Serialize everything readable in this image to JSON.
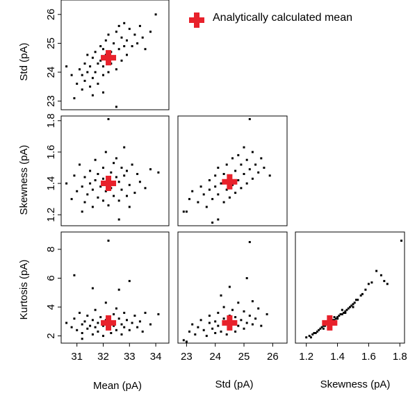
{
  "legend": {
    "label": "Analytically calculated mean",
    "marker_color": "#e8212b"
  },
  "colors": {
    "points": "#000000",
    "mean_marker": "#e8212b"
  },
  "chart_data": [
    {
      "type": "scatter",
      "panel": "std-vs-mean",
      "xlabel": "",
      "ylabel": "Std (pA)",
      "xlim": [
        30.4,
        34.5
      ],
      "ylim": [
        22.7,
        26.5
      ],
      "yticks": [
        23,
        24,
        25,
        26
      ],
      "mean": [
        32.2,
        24.5
      ],
      "points": [
        [
          30.6,
          24.2
        ],
        [
          30.8,
          23.9
        ],
        [
          31.0,
          23.6
        ],
        [
          31.1,
          24.1
        ],
        [
          31.2,
          23.9
        ],
        [
          31.2,
          23.4
        ],
        [
          31.3,
          24.3
        ],
        [
          31.3,
          23.7
        ],
        [
          31.4,
          24.6
        ],
        [
          31.4,
          24.0
        ],
        [
          31.5,
          23.5
        ],
        [
          31.5,
          24.2
        ],
        [
          31.6,
          24.5
        ],
        [
          31.6,
          23.8
        ],
        [
          31.7,
          24.0
        ],
        [
          31.7,
          24.7
        ],
        [
          31.8,
          24.3
        ],
        [
          31.8,
          23.6
        ],
        [
          31.9,
          24.4
        ],
        [
          31.9,
          24.9
        ],
        [
          32.0,
          24.2
        ],
        [
          32.0,
          24.8
        ],
        [
          32.0,
          23.9
        ],
        [
          32.1,
          25.1
        ],
        [
          32.1,
          24.6
        ],
        [
          32.2,
          24.0
        ],
        [
          32.2,
          25.3
        ],
        [
          32.3,
          24.7
        ],
        [
          32.3,
          24.3
        ],
        [
          32.4,
          25.0
        ],
        [
          32.4,
          24.5
        ],
        [
          32.5,
          25.4
        ],
        [
          32.5,
          24.1
        ],
        [
          32.6,
          24.8
        ],
        [
          32.6,
          25.6
        ],
        [
          32.7,
          24.4
        ],
        [
          32.7,
          25.2
        ],
        [
          32.8,
          24.9
        ],
        [
          32.8,
          25.7
        ],
        [
          32.9,
          24.6
        ],
        [
          32.9,
          25.1
        ],
        [
          33.0,
          25.5
        ],
        [
          33.1,
          24.9
        ],
        [
          33.2,
          25.3
        ],
        [
          33.3,
          25.0
        ],
        [
          33.4,
          25.6
        ],
        [
          33.5,
          25.2
        ],
        [
          33.6,
          24.8
        ],
        [
          33.8,
          25.4
        ],
        [
          34.0,
          26.0
        ],
        [
          32.5,
          22.8
        ],
        [
          30.9,
          23.1
        ],
        [
          31.6,
          23.2
        ],
        [
          32.0,
          23.3
        ]
      ]
    },
    {
      "type": "scatter",
      "panel": "skewness-vs-mean",
      "xlabel": "",
      "ylabel": "Skewness (pA)",
      "xlim": [
        30.4,
        34.5
      ],
      "ylim": [
        1.13,
        1.83
      ],
      "yticks": [
        1.2,
        1.4,
        1.6,
        1.8
      ],
      "mean": [
        32.2,
        1.4
      ],
      "points": [
        [
          30.6,
          1.4
        ],
        [
          30.8,
          1.3
        ],
        [
          30.9,
          1.45
        ],
        [
          31.0,
          1.35
        ],
        [
          31.1,
          1.52
        ],
        [
          31.2,
          1.38
        ],
        [
          31.3,
          1.28
        ],
        [
          31.3,
          1.44
        ],
        [
          31.4,
          1.33
        ],
        [
          31.5,
          1.48
        ],
        [
          31.5,
          1.4
        ],
        [
          31.6,
          1.25
        ],
        [
          31.6,
          1.36
        ],
        [
          31.7,
          1.55
        ],
        [
          31.7,
          1.42
        ],
        [
          31.8,
          1.31
        ],
        [
          31.8,
          1.46
        ],
        [
          31.9,
          1.38
        ],
        [
          32.0,
          1.5
        ],
        [
          32.0,
          1.29
        ],
        [
          32.0,
          1.43
        ],
        [
          32.1,
          1.35
        ],
        [
          32.1,
          1.6
        ],
        [
          32.2,
          1.81
        ],
        [
          32.2,
          1.26
        ],
        [
          32.3,
          1.47
        ],
        [
          32.3,
          1.37
        ],
        [
          32.4,
          1.53
        ],
        [
          32.4,
          1.32
        ],
        [
          32.5,
          1.44
        ],
        [
          32.5,
          1.56
        ],
        [
          32.6,
          1.29
        ],
        [
          32.6,
          1.41
        ],
        [
          32.7,
          1.5
        ],
        [
          32.7,
          1.36
        ],
        [
          32.8,
          1.63
        ],
        [
          32.8,
          1.45
        ],
        [
          32.9,
          1.32
        ],
        [
          32.9,
          1.48
        ],
        [
          33.0,
          1.39
        ],
        [
          33.1,
          1.52
        ],
        [
          33.2,
          1.34
        ],
        [
          33.3,
          1.46
        ],
        [
          33.4,
          1.41
        ],
        [
          33.6,
          1.37
        ],
        [
          33.8,
          1.49
        ],
        [
          34.1,
          1.47
        ],
        [
          32.6,
          1.17
        ],
        [
          33.0,
          1.25
        ],
        [
          31.2,
          1.22
        ]
      ]
    },
    {
      "type": "scatter",
      "panel": "skewness-vs-std",
      "xlabel": "",
      "ylabel": "",
      "xlim": [
        22.7,
        26.5
      ],
      "ylim": [
        1.13,
        1.83
      ],
      "mean": [
        24.5,
        1.41
      ],
      "points": [
        [
          22.9,
          1.22
        ],
        [
          23.1,
          1.3
        ],
        [
          23.2,
          1.35
        ],
        [
          23.4,
          1.28
        ],
        [
          23.5,
          1.38
        ],
        [
          23.6,
          1.33
        ],
        [
          23.7,
          1.25
        ],
        [
          23.8,
          1.42
        ],
        [
          23.8,
          1.36
        ],
        [
          23.9,
          1.3
        ],
        [
          24.0,
          1.45
        ],
        [
          24.0,
          1.38
        ],
        [
          24.1,
          1.33
        ],
        [
          24.1,
          1.5
        ],
        [
          24.2,
          1.4
        ],
        [
          24.3,
          1.28
        ],
        [
          24.3,
          1.46
        ],
        [
          24.4,
          1.36
        ],
        [
          24.4,
          1.52
        ],
        [
          24.5,
          1.31
        ],
        [
          24.5,
          1.44
        ],
        [
          24.6,
          1.39
        ],
        [
          24.6,
          1.56
        ],
        [
          24.7,
          1.34
        ],
        [
          24.7,
          1.48
        ],
        [
          24.8,
          1.42
        ],
        [
          24.8,
          1.58
        ],
        [
          24.9,
          1.37
        ],
        [
          24.9,
          1.52
        ],
        [
          25.0,
          1.46
        ],
        [
          25.0,
          1.63
        ],
        [
          25.1,
          1.4
        ],
        [
          25.1,
          1.55
        ],
        [
          25.2,
          1.49
        ],
        [
          25.3,
          1.43
        ],
        [
          25.3,
          1.6
        ],
        [
          25.4,
          1.52
        ],
        [
          25.5,
          1.47
        ],
        [
          25.6,
          1.56
        ],
        [
          25.7,
          1.5
        ],
        [
          25.9,
          1.45
        ],
        [
          25.2,
          1.81
        ],
        [
          24.1,
          1.17
        ],
        [
          23.0,
          1.22
        ],
        [
          23.9,
          1.15
        ]
      ]
    },
    {
      "type": "scatter",
      "panel": "kurtosis-vs-mean",
      "xlabel": "Mean (pA)",
      "ylabel": "Kurtosis (pA)",
      "xlim": [
        30.4,
        34.5
      ],
      "ylim": [
        1.5,
        9.2
      ],
      "xticks": [
        31,
        32,
        33,
        34
      ],
      "yticks": [
        2,
        4,
        6,
        8
      ],
      "mean": [
        32.2,
        2.9
      ],
      "points": [
        [
          30.6,
          2.9
        ],
        [
          30.8,
          2.6
        ],
        [
          30.9,
          3.2
        ],
        [
          31.0,
          2.4
        ],
        [
          31.1,
          3.6
        ],
        [
          31.2,
          2.8
        ],
        [
          31.2,
          2.2
        ],
        [
          31.3,
          3.0
        ],
        [
          31.4,
          2.5
        ],
        [
          31.4,
          3.4
        ],
        [
          31.5,
          2.7
        ],
        [
          31.6,
          2.1
        ],
        [
          31.6,
          3.1
        ],
        [
          31.7,
          2.6
        ],
        [
          31.7,
          3.8
        ],
        [
          31.8,
          2.9
        ],
        [
          31.8,
          2.3
        ],
        [
          31.9,
          3.3
        ],
        [
          32.0,
          2.7
        ],
        [
          32.0,
          2.0
        ],
        [
          32.1,
          3.1
        ],
        [
          32.1,
          4.3
        ],
        [
          32.2,
          2.5
        ],
        [
          32.2,
          8.6
        ],
        [
          32.3,
          3.0
        ],
        [
          32.3,
          2.2
        ],
        [
          32.4,
          3.5
        ],
        [
          32.4,
          2.7
        ],
        [
          32.5,
          3.9
        ],
        [
          32.5,
          2.4
        ],
        [
          32.6,
          3.2
        ],
        [
          32.6,
          5.2
        ],
        [
          32.7,
          2.8
        ],
        [
          32.7,
          2.1
        ],
        [
          32.8,
          3.6
        ],
        [
          32.8,
          2.6
        ],
        [
          32.9,
          3.1
        ],
        [
          33.0,
          2.4
        ],
        [
          33.0,
          5.8
        ],
        [
          33.1,
          2.9
        ],
        [
          33.2,
          3.4
        ],
        [
          33.3,
          2.6
        ],
        [
          33.4,
          3.0
        ],
        [
          33.5,
          2.3
        ],
        [
          33.6,
          3.6
        ],
        [
          33.8,
          2.8
        ],
        [
          34.1,
          3.5
        ],
        [
          30.9,
          6.2
        ],
        [
          31.6,
          5.3
        ],
        [
          31.2,
          1.8
        ]
      ]
    },
    {
      "type": "scatter",
      "panel": "kurtosis-vs-std",
      "xlabel": "Std (pA)",
      "ylabel": "",
      "xlim": [
        22.7,
        26.5
      ],
      "ylim": [
        1.5,
        9.2
      ],
      "xticks": [
        23,
        24,
        25,
        26
      ],
      "mean": [
        24.5,
        2.9
      ],
      "points": [
        [
          22.9,
          1.7
        ],
        [
          23.1,
          2.3
        ],
        [
          23.2,
          2.8
        ],
        [
          23.3,
          2.1
        ],
        [
          23.4,
          2.6
        ],
        [
          23.5,
          3.1
        ],
        [
          23.6,
          2.4
        ],
        [
          23.7,
          2.0
        ],
        [
          23.8,
          2.9
        ],
        [
          23.8,
          3.4
        ],
        [
          23.9,
          2.5
        ],
        [
          24.0,
          2.2
        ],
        [
          24.0,
          3.0
        ],
        [
          24.1,
          3.6
        ],
        [
          24.1,
          2.7
        ],
        [
          24.2,
          2.3
        ],
        [
          24.3,
          3.2
        ],
        [
          24.3,
          4.0
        ],
        [
          24.4,
          2.8
        ],
        [
          24.4,
          2.1
        ],
        [
          24.5,
          3.4
        ],
        [
          24.5,
          2.5
        ],
        [
          24.6,
          3.8
        ],
        [
          24.6,
          2.9
        ],
        [
          24.7,
          2.3
        ],
        [
          24.7,
          3.3
        ],
        [
          24.8,
          4.3
        ],
        [
          24.8,
          2.7
        ],
        [
          24.9,
          3.1
        ],
        [
          25.0,
          2.5
        ],
        [
          25.0,
          3.7
        ],
        [
          25.1,
          2.9
        ],
        [
          25.2,
          3.4
        ],
        [
          25.3,
          4.4
        ],
        [
          25.3,
          2.8
        ],
        [
          25.4,
          3.2
        ],
        [
          25.5,
          3.9
        ],
        [
          25.6,
          2.7
        ],
        [
          25.8,
          3.5
        ],
        [
          25.2,
          8.5
        ],
        [
          24.5,
          5.4
        ],
        [
          24.2,
          4.8
        ],
        [
          25.1,
          6.0
        ],
        [
          23.0,
          1.6
        ]
      ]
    },
    {
      "type": "scatter",
      "panel": "kurtosis-vs-skewness",
      "xlabel": "Skewness (pA)",
      "ylabel": "",
      "xlim": [
        1.13,
        1.83
      ],
      "ylim": [
        1.5,
        9.2
      ],
      "xticks": [
        1.2,
        1.4,
        1.6,
        1.8
      ],
      "mean": [
        1.35,
        2.9
      ],
      "points": [
        [
          1.2,
          1.9
        ],
        [
          1.22,
          2.0
        ],
        [
          1.24,
          2.1
        ],
        [
          1.25,
          2.2
        ],
        [
          1.26,
          2.2
        ],
        [
          1.28,
          2.4
        ],
        [
          1.29,
          2.5
        ],
        [
          1.3,
          2.6
        ],
        [
          1.31,
          2.5
        ],
        [
          1.32,
          2.7
        ],
        [
          1.33,
          2.8
        ],
        [
          1.34,
          2.9
        ],
        [
          1.35,
          2.8
        ],
        [
          1.36,
          3.0
        ],
        [
          1.37,
          3.1
        ],
        [
          1.38,
          3.1
        ],
        [
          1.39,
          3.2
        ],
        [
          1.4,
          3.3
        ],
        [
          1.41,
          3.4
        ],
        [
          1.42,
          3.5
        ],
        [
          1.43,
          3.5
        ],
        [
          1.44,
          3.6
        ],
        [
          1.45,
          3.7
        ],
        [
          1.46,
          3.8
        ],
        [
          1.47,
          3.9
        ],
        [
          1.48,
          4.0
        ],
        [
          1.49,
          4.1
        ],
        [
          1.5,
          4.2
        ],
        [
          1.51,
          4.3
        ],
        [
          1.52,
          4.5
        ],
        [
          1.53,
          4.5
        ],
        [
          1.55,
          4.8
        ],
        [
          1.56,
          4.9
        ],
        [
          1.58,
          5.2
        ],
        [
          1.6,
          5.6
        ],
        [
          1.62,
          5.7
        ],
        [
          1.65,
          6.5
        ],
        [
          1.68,
          6.2
        ],
        [
          1.7,
          5.8
        ],
        [
          1.72,
          5.6
        ],
        [
          1.81,
          8.6
        ],
        [
          1.23,
          1.9
        ],
        [
          1.27,
          2.3
        ],
        [
          1.31,
          2.7
        ],
        [
          1.36,
          2.9
        ],
        [
          1.4,
          3.2
        ],
        [
          1.45,
          3.6
        ],
        [
          1.5,
          4.0
        ],
        [
          1.43,
          3.8
        ],
        [
          1.38,
          3.3
        ]
      ]
    }
  ]
}
